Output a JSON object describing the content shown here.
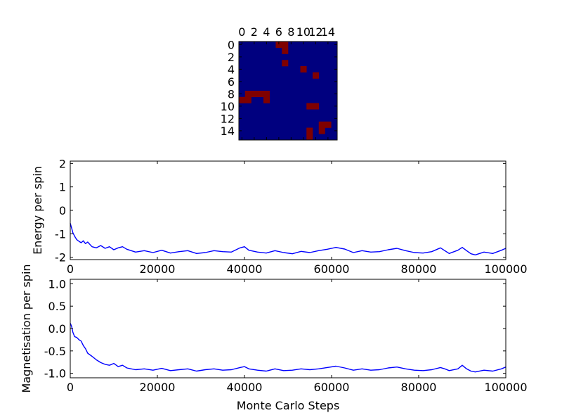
{
  "chart_data": [
    {
      "type": "heatmap",
      "title": "",
      "grid_size": 16,
      "xticks": [
        "0",
        "2",
        "4",
        "6",
        "8",
        "10",
        "12",
        "14"
      ],
      "yticks": [
        "0",
        "2",
        "4",
        "6",
        "8",
        "10",
        "12",
        "14"
      ],
      "colors": {
        "minus": "#00007f",
        "plus": "#7f0000"
      },
      "plus_cells": [
        [
          0,
          6
        ],
        [
          0,
          7
        ],
        [
          1,
          7
        ],
        [
          3,
          7
        ],
        [
          4,
          10
        ],
        [
          5,
          12
        ],
        [
          8,
          1
        ],
        [
          8,
          2
        ],
        [
          8,
          3
        ],
        [
          8,
          4
        ],
        [
          9,
          0
        ],
        [
          9,
          1
        ],
        [
          9,
          4
        ],
        [
          10,
          11
        ],
        [
          10,
          12
        ],
        [
          13,
          13
        ],
        [
          13,
          14
        ],
        [
          14,
          11
        ],
        [
          14,
          13
        ],
        [
          15,
          11
        ]
      ]
    },
    {
      "type": "line",
      "title": "",
      "xlabel": "",
      "ylabel": "Energy per spin",
      "xlim": [
        0,
        100000
      ],
      "ylim": [
        -2.1,
        2.1
      ],
      "xticks": [
        "0",
        "20000",
        "40000",
        "60000",
        "80000",
        "100000"
      ],
      "yticks": [
        "-2",
        "-1",
        "0",
        "1",
        "2"
      ],
      "series": [
        {
          "color": "#0000ff",
          "x": [
            0,
            300,
            600,
            1000,
            1500,
            2000,
            2500,
            3000,
            3500,
            4000,
            5000,
            6000,
            7000,
            8000,
            9000,
            10000,
            11000,
            12000,
            13000,
            14000,
            15000,
            17000,
            19000,
            21000,
            23000,
            25000,
            27000,
            29000,
            31000,
            33000,
            35000,
            37000,
            39000,
            40000,
            41000,
            43000,
            45000,
            47000,
            49000,
            51000,
            53000,
            55000,
            57000,
            59000,
            61000,
            63000,
            65000,
            67000,
            69000,
            71000,
            73000,
            75000,
            77000,
            79000,
            81000,
            83000,
            85000,
            86000,
            87000,
            89000,
            90000,
            91000,
            92000,
            93000,
            95000,
            97000,
            99000,
            100000
          ],
          "y": [
            -0.55,
            -0.75,
            -0.95,
            -1.1,
            -1.25,
            -1.32,
            -1.38,
            -1.3,
            -1.42,
            -1.35,
            -1.55,
            -1.6,
            -1.5,
            -1.62,
            -1.55,
            -1.68,
            -1.6,
            -1.55,
            -1.66,
            -1.72,
            -1.78,
            -1.72,
            -1.8,
            -1.7,
            -1.82,
            -1.76,
            -1.72,
            -1.84,
            -1.8,
            -1.72,
            -1.76,
            -1.78,
            -1.6,
            -1.55,
            -1.7,
            -1.78,
            -1.82,
            -1.72,
            -1.8,
            -1.85,
            -1.75,
            -1.8,
            -1.72,
            -1.66,
            -1.58,
            -1.65,
            -1.8,
            -1.72,
            -1.78,
            -1.76,
            -1.68,
            -1.62,
            -1.72,
            -1.8,
            -1.82,
            -1.76,
            -1.6,
            -1.72,
            -1.84,
            -1.7,
            -1.58,
            -1.72,
            -1.85,
            -1.9,
            -1.78,
            -1.84,
            -1.7,
            -1.62
          ]
        }
      ]
    },
    {
      "type": "line",
      "title": "",
      "xlabel": "Monte Carlo Steps",
      "ylabel": "Magnetisation per spin",
      "xlim": [
        0,
        100000
      ],
      "ylim": [
        -1.1,
        1.1
      ],
      "xticks": [
        "0",
        "20000",
        "40000",
        "60000",
        "80000",
        "100000"
      ],
      "yticks": [
        "-1.0",
        "-0.5",
        "0.0",
        "0.5",
        "1.0"
      ],
      "series": [
        {
          "color": "#0000ff",
          "x": [
            0,
            300,
            600,
            1000,
            1500,
            2000,
            2500,
            3000,
            3500,
            4000,
            5000,
            6000,
            7000,
            8000,
            9000,
            10000,
            11000,
            12000,
            13000,
            14000,
            15000,
            17000,
            19000,
            21000,
            23000,
            25000,
            27000,
            29000,
            31000,
            33000,
            35000,
            37000,
            39000,
            40000,
            41000,
            43000,
            45000,
            47000,
            49000,
            51000,
            53000,
            55000,
            57000,
            59000,
            61000,
            63000,
            65000,
            67000,
            69000,
            71000,
            73000,
            75000,
            77000,
            79000,
            81000,
            83000,
            85000,
            86000,
            87000,
            89000,
            90000,
            91000,
            92000,
            93000,
            95000,
            97000,
            99000,
            100000
          ],
          "y": [
            0.12,
            0.05,
            -0.08,
            -0.18,
            -0.2,
            -0.25,
            -0.28,
            -0.38,
            -0.45,
            -0.55,
            -0.62,
            -0.7,
            -0.76,
            -0.8,
            -0.82,
            -0.78,
            -0.85,
            -0.82,
            -0.88,
            -0.9,
            -0.92,
            -0.9,
            -0.93,
            -0.89,
            -0.94,
            -0.92,
            -0.9,
            -0.95,
            -0.92,
            -0.9,
            -0.93,
            -0.92,
            -0.87,
            -0.85,
            -0.9,
            -0.93,
            -0.95,
            -0.9,
            -0.94,
            -0.93,
            -0.9,
            -0.92,
            -0.9,
            -0.87,
            -0.84,
            -0.88,
            -0.93,
            -0.9,
            -0.93,
            -0.92,
            -0.88,
            -0.86,
            -0.9,
            -0.93,
            -0.94,
            -0.92,
            -0.87,
            -0.9,
            -0.94,
            -0.9,
            -0.82,
            -0.9,
            -0.95,
            -0.97,
            -0.93,
            -0.95,
            -0.9,
            -0.86
          ]
        }
      ]
    }
  ]
}
